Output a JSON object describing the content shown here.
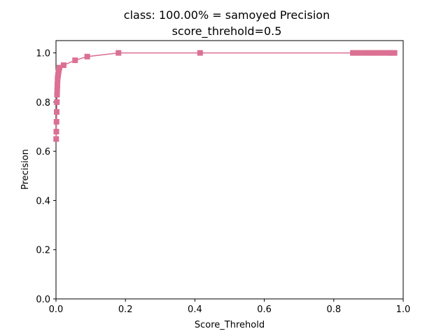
{
  "chart_data": {
    "type": "line",
    "title_line1": "class: 100.00% = samoyed Precision",
    "title_line2": "score_threhold=0.5",
    "xlabel": "Score_Threhold",
    "ylabel": "Precision",
    "xlim": [
      0.0,
      1.0
    ],
    "ylim": [
      0.0,
      1.05
    ],
    "x_ticks": [
      "0.0",
      "0.2",
      "0.4",
      "0.6",
      "0.8",
      "1.0"
    ],
    "y_ticks": [
      "0.0",
      "0.2",
      "0.4",
      "0.6",
      "0.8",
      "1.0"
    ],
    "grid": false,
    "legend": "none",
    "marker": "square",
    "color": "#db7093",
    "series": [
      {
        "x": [
          0.0005,
          0.001,
          0.0015,
          0.002,
          0.0025,
          0.003,
          0.0035,
          0.004,
          0.0045,
          0.005,
          0.006,
          0.007,
          0.008,
          0.01,
          0.022,
          0.055,
          0.09,
          0.18,
          0.415,
          0.855,
          0.865,
          0.875,
          0.89,
          0.9,
          0.91,
          0.92,
          0.93,
          0.94,
          0.95,
          0.96,
          0.965,
          0.97,
          0.975
        ],
        "values": [
          0.65,
          0.68,
          0.72,
          0.76,
          0.8,
          0.83,
          0.85,
          0.87,
          0.89,
          0.9,
          0.91,
          0.92,
          0.93,
          0.94,
          0.95,
          0.97,
          0.985,
          1.0,
          1.0,
          1.0,
          1.0,
          1.0,
          1.0,
          1.0,
          1.0,
          1.0,
          1.0,
          1.0,
          1.0,
          1.0,
          1.0,
          1.0,
          1.0
        ]
      }
    ]
  }
}
